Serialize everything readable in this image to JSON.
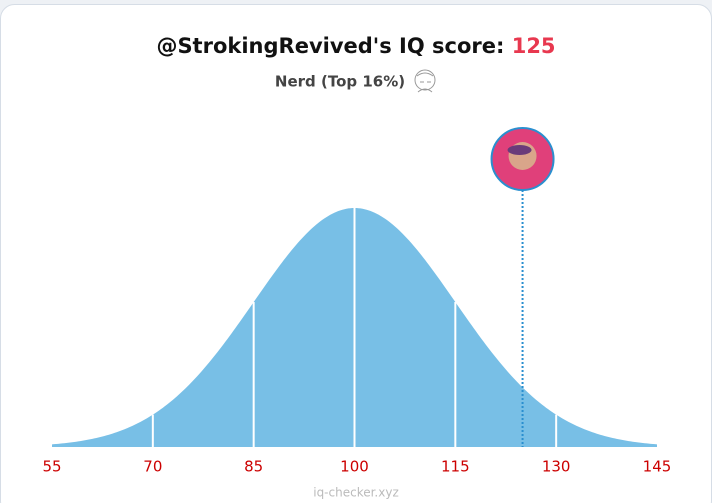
{
  "chart_data": {
    "type": "area",
    "title": "@StrokingRevived's IQ score:",
    "score": 125,
    "subtitle": "Nerd (Top 16%)",
    "xlim": [
      55,
      145
    ],
    "xticks": [
      55,
      70,
      85,
      100,
      115,
      130,
      145
    ],
    "color": "#78bfe6",
    "marker_color": "#2a8fcf",
    "tick_color": "#cc0000"
  },
  "footer": "iq-checker.xyz"
}
